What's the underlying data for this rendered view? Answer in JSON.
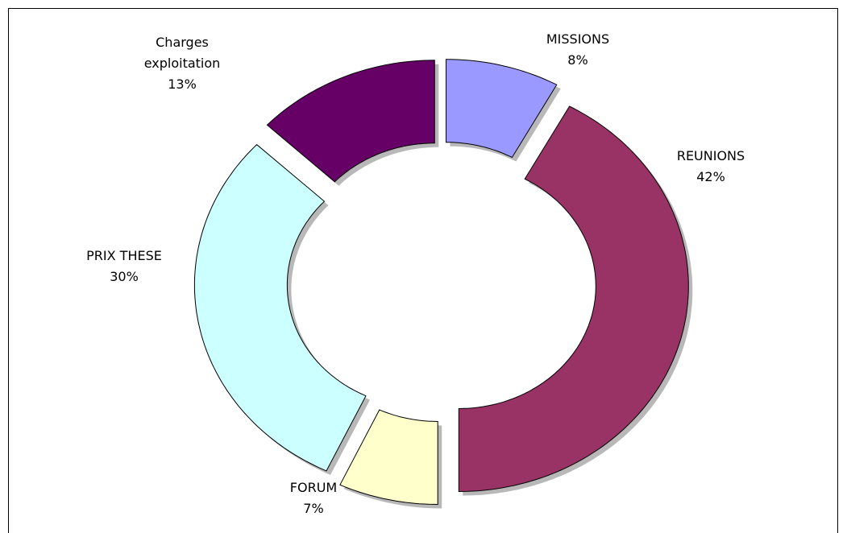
{
  "chart_data": {
    "type": "donut",
    "categories": [
      "MISSIONS",
      "REUNIONS",
      "FORUM",
      "PRIX THESE",
      "Charges exploitation"
    ],
    "values": [
      8,
      42,
      7,
      30,
      13
    ],
    "value_labels": [
      "8%",
      "42%",
      "7%",
      "30%",
      "13%"
    ],
    "colors": [
      "#9999ff",
      "#993366",
      "#ffffcc",
      "#ccffff",
      "#660066"
    ],
    "exploded": true
  }
}
